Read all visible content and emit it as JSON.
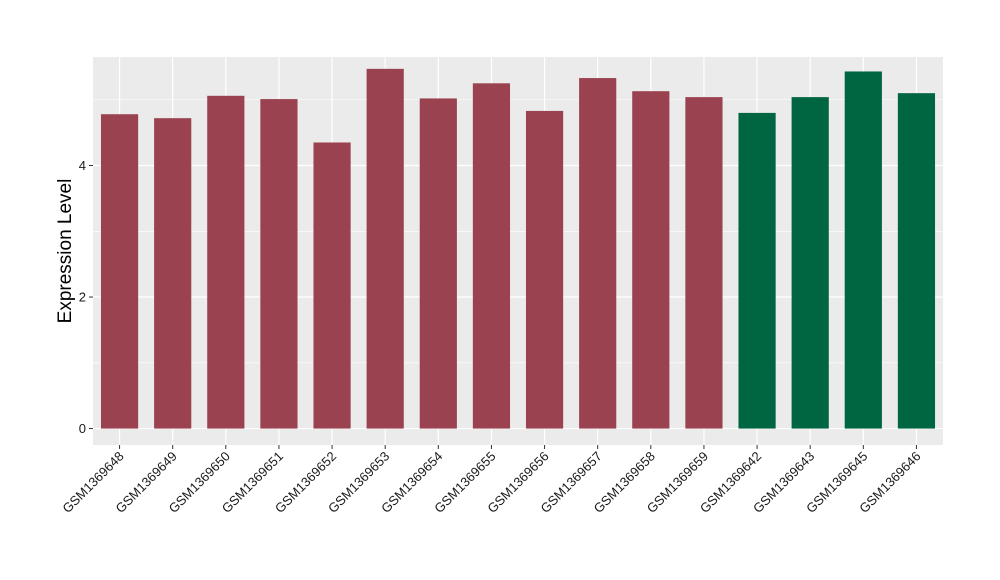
{
  "chart_data": {
    "type": "bar",
    "title": "",
    "xlabel": "",
    "ylabel": "Expression Level",
    "ylim": [
      -0.25,
      5.65
    ],
    "yticks": [
      0,
      2,
      4
    ],
    "grid": true,
    "legend": "none",
    "categories": [
      "GSM1369648",
      "GSM1369649",
      "GSM1369650",
      "GSM1369651",
      "GSM1369652",
      "GSM1369653",
      "GSM1369654",
      "GSM1369655",
      "GSM1369656",
      "GSM1369657",
      "GSM1369658",
      "GSM1369659",
      "GSM1369642",
      "GSM1369643",
      "GSM1369645",
      "GSM1369646"
    ],
    "values": [
      4.78,
      4.72,
      5.06,
      5.01,
      4.35,
      5.47,
      5.02,
      5.25,
      4.83,
      5.33,
      5.13,
      5.04,
      4.8,
      5.04,
      5.43,
      5.1
    ],
    "groups": [
      "a",
      "a",
      "a",
      "a",
      "a",
      "a",
      "a",
      "a",
      "a",
      "a",
      "a",
      "a",
      "b",
      "b",
      "b",
      "b"
    ],
    "colors": {
      "a": "#9b4251",
      "b": "#006642"
    },
    "panel_background": "#ebebeb",
    "gridline_color": "#ffffff"
  }
}
